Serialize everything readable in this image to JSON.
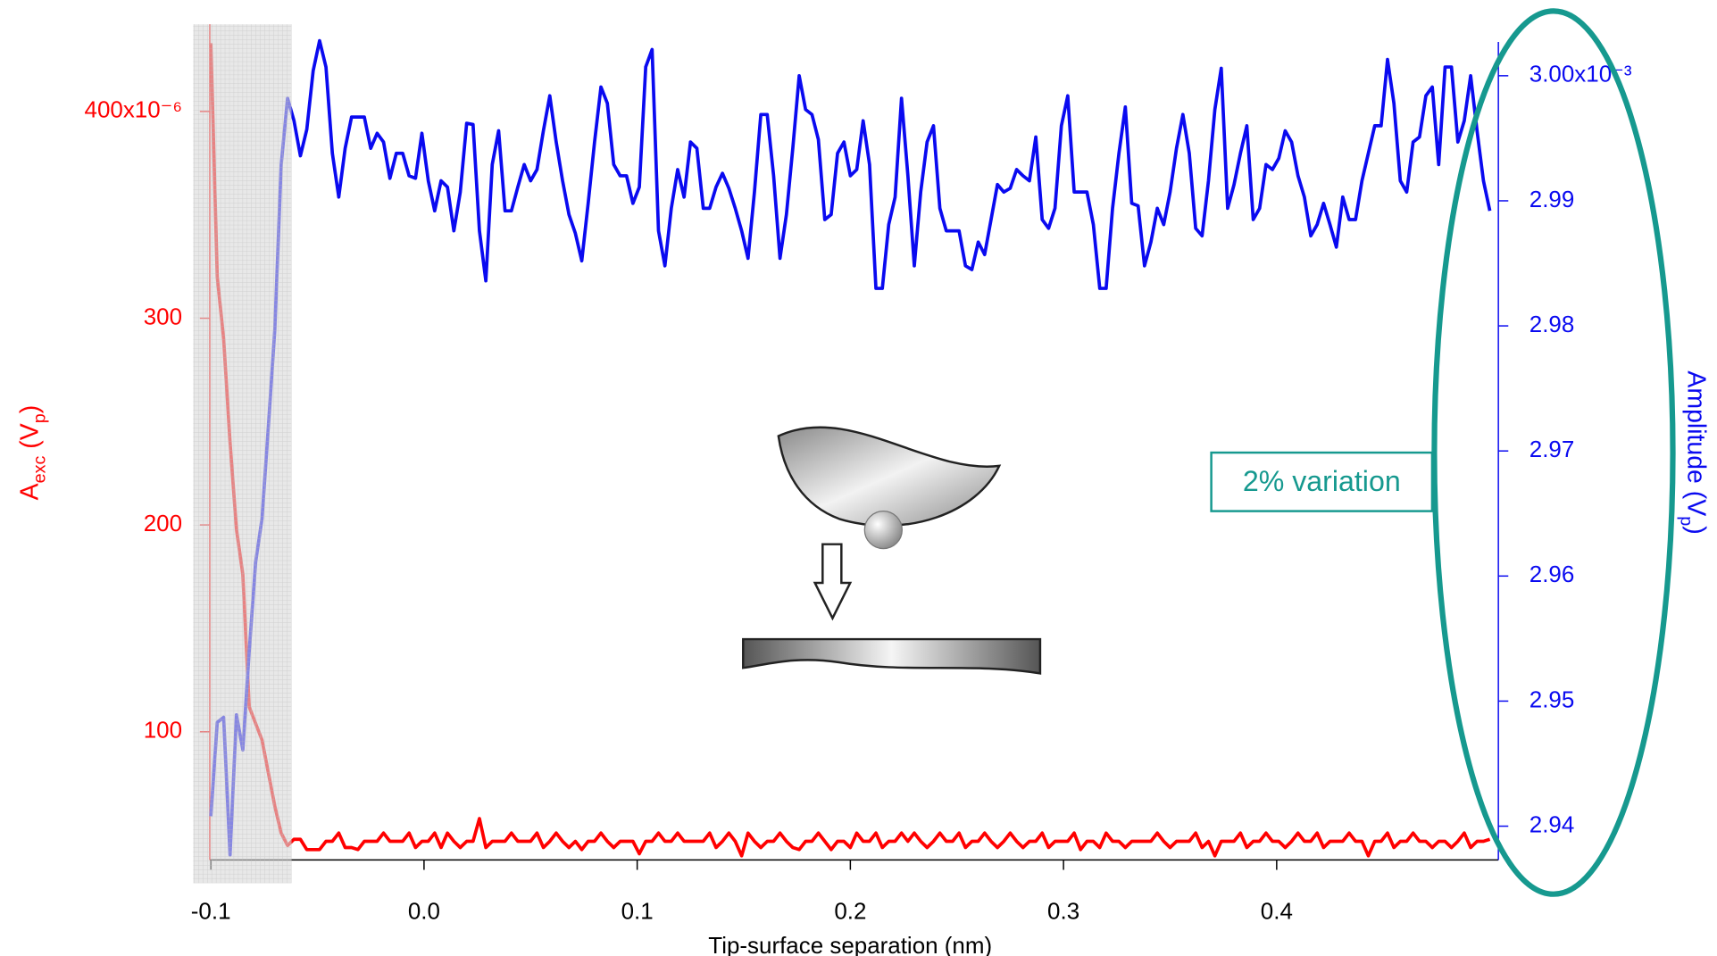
{
  "chart_data": {
    "type": "line",
    "x_label": "Tip-surface separation (nm)",
    "y_label": [
      "A",
      "exc",
      " (V",
      "p",
      ")"
    ],
    "y2_label": [
      "Amplitude (V",
      "p",
      ")"
    ],
    "annotation": "2% variation",
    "xlim": [
      -0.1005,
      0.504
    ],
    "xticks": [
      -0.1,
      {
        "value": 0,
        "label": "0.0"
      },
      0.1,
      0.2,
      0.3,
      0.4
    ],
    "ylim": [
      3.8e-05,
      0.0004336
    ],
    "yticks": [
      {
        "value": 0.0001,
        "label": "100"
      },
      {
        "value": 0.0002,
        "label": "200"
      },
      {
        "value": 0.0003,
        "label": "300"
      },
      {
        "value": 0.0004,
        "label": "400x10⁻⁶"
      }
    ],
    "y2lim": [
      0.0029373,
      0.0030027
    ],
    "y2ticks": [
      {
        "value": 0.00294,
        "label": "2.94"
      },
      {
        "value": 0.00295,
        "label": "2.95"
      },
      {
        "value": 0.00296,
        "label": "2.96"
      },
      {
        "value": 0.00297,
        "label": "2.97"
      },
      {
        "value": 0.00298,
        "label": "2.98"
      },
      {
        "value": 0.00299,
        "label": "2.99"
      },
      {
        "value": 0.003,
        "label": "3.00x10⁻³"
      }
    ],
    "x": [
      -0.1,
      -0.097,
      -0.094,
      -0.091,
      -0.088,
      -0.085,
      -0.082,
      -0.079,
      -0.076,
      -0.073,
      -0.07,
      -0.067,
      -0.064,
      -0.061,
      -0.058,
      -0.055,
      -0.052,
      -0.049,
      -0.046,
      -0.043,
      -0.04,
      -0.037,
      -0.034,
      -0.031,
      -0.028,
      -0.025,
      -0.022,
      -0.019,
      -0.016,
      -0.013,
      -0.01,
      -0.007,
      -0.004,
      -0.001,
      0.002,
      0.005,
      0.008,
      0.011,
      0.014,
      0.017,
      0.02,
      0.023,
      0.026,
      0.029,
      0.032,
      0.035,
      0.038,
      0.041,
      0.044,
      0.047,
      0.05,
      0.053,
      0.056,
      0.059,
      0.062,
      0.065,
      0.068,
      0.071,
      0.074,
      0.077,
      0.08,
      0.083,
      0.086,
      0.089,
      0.092,
      0.095,
      0.098,
      0.101,
      0.104,
      0.107,
      0.11,
      0.113,
      0.116,
      0.119,
      0.122,
      0.125,
      0.128,
      0.131,
      0.134,
      0.137,
      0.14,
      0.143,
      0.146,
      0.149,
      0.152,
      0.155,
      0.158,
      0.161,
      0.164,
      0.167,
      0.17,
      0.173,
      0.176,
      0.179,
      0.182,
      0.185,
      0.188,
      0.191,
      0.194,
      0.197,
      0.2,
      0.203,
      0.206,
      0.209,
      0.212,
      0.215,
      0.218,
      0.221,
      0.224,
      0.227,
      0.23,
      0.233,
      0.236,
      0.239,
      0.242,
      0.245,
      0.248,
      0.251,
      0.254,
      0.257,
      0.26,
      0.263,
      0.266,
      0.269,
      0.272,
      0.275,
      0.278,
      0.281,
      0.284,
      0.287,
      0.29,
      0.293,
      0.296,
      0.299,
      0.302,
      0.305,
      0.308,
      0.311,
      0.314,
      0.317,
      0.32,
      0.323,
      0.326,
      0.329,
      0.332,
      0.335,
      0.338,
      0.341,
      0.344,
      0.347,
      0.35,
      0.353,
      0.356,
      0.359,
      0.362,
      0.365,
      0.368,
      0.371,
      0.374,
      0.377,
      0.38,
      0.383,
      0.386,
      0.389,
      0.392,
      0.395,
      0.398,
      0.401,
      0.404,
      0.407,
      0.41,
      0.413,
      0.416,
      0.419,
      0.422,
      0.425,
      0.428,
      0.431,
      0.434,
      0.437,
      0.44,
      0.443,
      0.446,
      0.449,
      0.452,
      0.455,
      0.458,
      0.461,
      0.464,
      0.467,
      0.47,
      0.473,
      0.476,
      0.479,
      0.482,
      0.485,
      0.488,
      0.491,
      0.494,
      0.497,
      0.5
    ],
    "series": [
      {
        "color": "#ff0000",
        "axis": "y",
        "values": [
          0.000433,
          0.00032,
          0.00029,
          0.00024,
          0.000198,
          0.000176,
          0.000112,
          0.000104,
          9.6e-05,
          8e-05,
          6.4e-05,
          5.1e-05,
          4.5e-05,
          4.8e-05,
          4.8e-05,
          4.3e-05,
          4.3e-05,
          4.3e-05,
          4.7e-05,
          4.7e-05,
          5.1e-05,
          4.4e-05,
          4.4e-05,
          4.3e-05,
          4.7e-05,
          4.7e-05,
          4.7e-05,
          5.1e-05,
          4.7e-05,
          4.7e-05,
          4.7e-05,
          5.1e-05,
          4.4e-05,
          4.7e-05,
          4.7e-05,
          5.1e-05,
          4.4e-05,
          5.1e-05,
          4.7e-05,
          4.4e-05,
          4.7e-05,
          4.7e-05,
          5.8e-05,
          4.4e-05,
          4.7e-05,
          4.7e-05,
          4.7e-05,
          5.1e-05,
          4.7e-05,
          4.7e-05,
          4.7e-05,
          5.1e-05,
          4.4e-05,
          4.7e-05,
          5.1e-05,
          4.7e-05,
          4.4e-05,
          4.7e-05,
          4.3e-05,
          4.7e-05,
          4.7e-05,
          5.1e-05,
          4.7e-05,
          4.4e-05,
          4.7e-05,
          4.7e-05,
          4.7e-05,
          4.1e-05,
          4.7e-05,
          4.7e-05,
          5.1e-05,
          4.7e-05,
          4.7e-05,
          5.1e-05,
          4.7e-05,
          4.7e-05,
          4.7e-05,
          4.7e-05,
          5.1e-05,
          4.4e-05,
          4.7e-05,
          5.1e-05,
          4.7e-05,
          4e-05,
          5.1e-05,
          4.7e-05,
          4.4e-05,
          4.7e-05,
          4.7e-05,
          5.1e-05,
          4.7e-05,
          4.4e-05,
          4.3e-05,
          4.7e-05,
          4.7e-05,
          5.1e-05,
          4.7e-05,
          4.3e-05,
          4.7e-05,
          4.7e-05,
          4.4e-05,
          5.1e-05,
          4.7e-05,
          4.7e-05,
          5.1e-05,
          4.4e-05,
          4.7e-05,
          4.7e-05,
          5.1e-05,
          4.7e-05,
          5.1e-05,
          4.7e-05,
          4.4e-05,
          4.7e-05,
          5.1e-05,
          4.7e-05,
          4.7e-05,
          5.1e-05,
          4.4e-05,
          4.7e-05,
          4.7e-05,
          5.1e-05,
          4.7e-05,
          4.4e-05,
          4.7e-05,
          5.1e-05,
          4.7e-05,
          4.4e-05,
          4.7e-05,
          4.7e-05,
          5.1e-05,
          4.4e-05,
          4.7e-05,
          4.7e-05,
          4.7e-05,
          5.1e-05,
          4.3e-05,
          4.7e-05,
          4.7e-05,
          4.4e-05,
          5.1e-05,
          4.7e-05,
          4.7e-05,
          4.4e-05,
          4.7e-05,
          4.7e-05,
          4.7e-05,
          4.7e-05,
          5.1e-05,
          4.7e-05,
          4.4e-05,
          4.7e-05,
          4.7e-05,
          4.7e-05,
          5.1e-05,
          4.4e-05,
          4.7e-05,
          4e-05,
          4.7e-05,
          4.7e-05,
          4.7e-05,
          5.1e-05,
          4.4e-05,
          4.7e-05,
          4.7e-05,
          5.1e-05,
          4.7e-05,
          4.7e-05,
          4.4e-05,
          4.7e-05,
          5.1e-05,
          4.7e-05,
          4.7e-05,
          5.1e-05,
          4.4e-05,
          4.7e-05,
          4.7e-05,
          4.7e-05,
          5.1e-05,
          4.7e-05,
          4.7e-05,
          4e-05,
          4.7e-05,
          4.7e-05,
          5.1e-05,
          4.4e-05,
          4.7e-05,
          4.7e-05,
          5.1e-05,
          4.7e-05,
          4.7e-05,
          4.4e-05,
          4.7e-05,
          4.7e-05,
          4.4e-05,
          4.7e-05,
          5.1e-05,
          4.4e-05,
          4.7e-05,
          4.7e-05,
          4.8e-05
        ]
      },
      {
        "color": "#0a0af0",
        "axis": "y2",
        "values": [
          0.0029408,
          0.0029483,
          0.0029487,
          0.0029377,
          0.0029489,
          0.0029461,
          0.002954,
          0.0029611,
          0.0029646,
          0.002972,
          0.0029797,
          0.0029929,
          0.0029982,
          0.0029964,
          0.0029936,
          0.0029957,
          0.0030004,
          0.0030028,
          0.0030007,
          0.0029938,
          0.0029903,
          0.0029942,
          0.0029967,
          0.0029967,
          0.0029967,
          0.0029942,
          0.0029954,
          0.0029947,
          0.0029918,
          0.0029938,
          0.0029938,
          0.002992,
          0.0029918,
          0.0029954,
          0.0029916,
          0.0029892,
          0.0029916,
          0.0029911,
          0.0029876,
          0.0029907,
          0.0029962,
          0.0029961,
          0.0029876,
          0.0029836,
          0.0029929,
          0.0029956,
          0.0029892,
          0.0029892,
          0.0029911,
          0.0029929,
          0.0029916,
          0.0029925,
          0.0029956,
          0.0029984,
          0.0029947,
          0.0029916,
          0.0029889,
          0.0029874,
          0.0029852,
          0.0029898,
          0.0029947,
          0.0029991,
          0.0029978,
          0.0029929,
          0.002992,
          0.002992,
          0.0029898,
          0.0029911,
          0.0030007,
          0.0030021,
          0.0029876,
          0.0029848,
          0.0029894,
          0.0029925,
          0.0029903,
          0.0029947,
          0.0029942,
          0.0029894,
          0.0029894,
          0.0029911,
          0.0029922,
          0.002991,
          0.0029894,
          0.0029876,
          0.0029854,
          0.0029907,
          0.0029969,
          0.0029969,
          0.002992,
          0.0029854,
          0.0029889,
          0.0029942,
          0.003,
          0.0029973,
          0.0029969,
          0.0029949,
          0.0029885,
          0.0029889,
          0.0029938,
          0.0029947,
          0.002992,
          0.0029925,
          0.0029964,
          0.0029929,
          0.002983,
          0.002983,
          0.0029881,
          0.0029903,
          0.0029982,
          0.002992,
          0.0029848,
          0.0029907,
          0.0029947,
          0.002996,
          0.0029894,
          0.0029876,
          0.0029876,
          0.0029876,
          0.0029848,
          0.0029845,
          0.0029867,
          0.0029857,
          0.0029885,
          0.0029913,
          0.0029907,
          0.002991,
          0.0029925,
          0.002992,
          0.0029916,
          0.0029951,
          0.0029885,
          0.0029878,
          0.0029894,
          0.002996,
          0.0029984,
          0.0029907,
          0.0029907,
          0.0029907,
          0.0029881,
          0.002983,
          0.002983,
          0.0029894,
          0.0029938,
          0.0029975,
          0.0029898,
          0.0029896,
          0.0029848,
          0.0029867,
          0.0029894,
          0.0029881,
          0.0029907,
          0.0029942,
          0.0029969,
          0.0029938,
          0.0029878,
          0.0029872,
          0.0029916,
          0.0029973,
          0.0030006,
          0.0029894,
          0.0029913,
          0.0029938,
          0.002996,
          0.0029885,
          0.0029894,
          0.0029929,
          0.0029925,
          0.0029934,
          0.0029956,
          0.0029947,
          0.002992,
          0.0029903,
          0.0029872,
          0.0029881,
          0.0029898,
          0.0029881,
          0.0029863,
          0.0029903,
          0.0029885,
          0.0029885,
          0.0029916,
          0.0029938,
          0.002996,
          0.002996,
          0.0030013,
          0.0029978,
          0.0029916,
          0.0029907,
          0.0029947,
          0.0029951,
          0.0029984,
          0.0029991,
          0.0029929,
          0.0030007,
          0.0030007,
          0.0029947,
          0.0029964,
          0.003,
          0.0029956,
          0.0029916,
          0.0029892
        ]
      }
    ]
  }
}
